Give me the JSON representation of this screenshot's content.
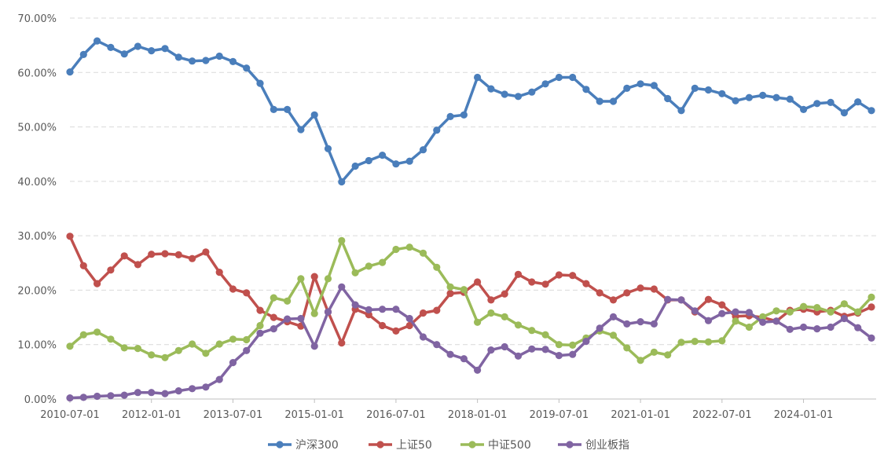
{
  "chart_data": {
    "type": "line",
    "title": "",
    "xlabel": "",
    "ylabel": "",
    "ylim": [
      0,
      0.7
    ],
    "y_ticks": [
      "0.00%",
      "10.00%",
      "20.00%",
      "30.00%",
      "40.00%",
      "50.00%",
      "60.00%",
      "70.00%"
    ],
    "x_tick_labels": [
      "2010-07-01",
      "2012-01-01",
      "2013-07-01",
      "2015-01-01",
      "2016-07-01",
      "2018-01-01",
      "2019-07-01",
      "2021-01-01",
      "2022-07-01",
      "2024-01-01"
    ],
    "grid": "horizontal dashed",
    "legend_position": "bottom",
    "x": [
      "2010-07-01",
      "2010-10-01",
      "2011-01-01",
      "2011-04-01",
      "2011-07-01",
      "2011-10-01",
      "2012-01-01",
      "2012-04-01",
      "2012-07-01",
      "2012-10-01",
      "2013-01-01",
      "2013-04-01",
      "2013-07-01",
      "2013-10-01",
      "2014-01-01",
      "2014-04-01",
      "2014-07-01",
      "2014-10-01",
      "2015-01-01",
      "2015-04-01",
      "2015-07-01",
      "2015-10-01",
      "2016-01-01",
      "2016-04-01",
      "2016-07-01",
      "2016-10-01",
      "2017-01-01",
      "2017-04-01",
      "2017-07-01",
      "2017-10-01",
      "2018-01-01",
      "2018-04-01",
      "2018-07-01",
      "2018-10-01",
      "2019-01-01",
      "2019-04-01",
      "2019-07-01",
      "2019-10-01",
      "2020-01-01",
      "2020-04-01",
      "2020-07-01",
      "2020-10-01",
      "2021-01-01",
      "2021-04-01",
      "2021-07-01",
      "2021-10-01",
      "2022-01-01",
      "2022-04-01",
      "2022-07-01",
      "2022-10-01",
      "2023-01-01",
      "2023-04-01",
      "2023-07-01",
      "2023-10-01",
      "2024-01-01",
      "2024-04-01",
      "2024-07-01",
      "2024-10-01",
      "2025-01-01",
      "2025-04-01"
    ],
    "series": [
      {
        "name": "沪深300",
        "color": "#4a7ebb",
        "values": [
          0.601,
          0.633,
          0.658,
          0.646,
          0.634,
          0.648,
          0.64,
          0.644,
          0.628,
          0.621,
          0.622,
          0.63,
          0.62,
          0.608,
          0.58,
          0.532,
          0.532,
          0.495,
          0.522,
          0.46,
          0.399,
          0.428,
          0.438,
          0.448,
          0.432,
          0.437,
          0.458,
          0.494,
          0.519,
          0.522,
          0.591,
          0.57,
          0.56,
          0.556,
          0.564,
          0.579,
          0.591,
          0.591,
          0.569,
          0.547,
          0.547,
          0.571,
          0.579,
          0.576,
          0.552,
          0.53,
          0.571,
          0.568,
          0.561,
          0.548,
          0.554,
          0.558,
          0.554,
          0.551,
          0.532,
          0.543,
          0.545,
          0.526,
          0.546,
          0.53
        ]
      },
      {
        "name": "上证50",
        "color": "#c0504d",
        "values": [
          0.299,
          0.245,
          0.212,
          0.237,
          0.263,
          0.247,
          0.266,
          0.267,
          0.265,
          0.258,
          0.27,
          0.233,
          0.202,
          0.195,
          0.163,
          0.15,
          0.142,
          0.134,
          0.225,
          0.16,
          0.103,
          0.165,
          0.155,
          0.135,
          0.125,
          0.135,
          0.158,
          0.163,
          0.194,
          0.196,
          0.215,
          0.182,
          0.193,
          0.229,
          0.215,
          0.211,
          0.228,
          0.227,
          0.212,
          0.195,
          0.182,
          0.195,
          0.204,
          0.202,
          0.182,
          0.182,
          0.16,
          0.183,
          0.173,
          0.152,
          0.153,
          0.15,
          0.143,
          0.163,
          0.165,
          0.16,
          0.163,
          0.152,
          0.158,
          0.169
        ]
      },
      {
        "name": "中证500",
        "color": "#9bbb59",
        "values": [
          0.097,
          0.118,
          0.123,
          0.11,
          0.094,
          0.093,
          0.081,
          0.076,
          0.089,
          0.101,
          0.084,
          0.101,
          0.11,
          0.109,
          0.135,
          0.186,
          0.18,
          0.221,
          0.157,
          0.221,
          0.291,
          0.232,
          0.244,
          0.251,
          0.275,
          0.279,
          0.268,
          0.242,
          0.206,
          0.201,
          0.141,
          0.158,
          0.151,
          0.136,
          0.126,
          0.118,
          0.1,
          0.099,
          0.112,
          0.125,
          0.117,
          0.094,
          0.071,
          0.086,
          0.081,
          0.104,
          0.106,
          0.105,
          0.107,
          0.143,
          0.132,
          0.151,
          0.162,
          0.16,
          0.17,
          0.168,
          0.16,
          0.175,
          0.16,
          0.187
        ]
      },
      {
        "name": "创业板指",
        "color": "#8064a2",
        "values": [
          0.002,
          0.003,
          0.005,
          0.006,
          0.007,
          0.012,
          0.012,
          0.01,
          0.015,
          0.019,
          0.022,
          0.036,
          0.067,
          0.089,
          0.121,
          0.129,
          0.147,
          0.148,
          0.097,
          0.16,
          0.206,
          0.173,
          0.164,
          0.165,
          0.165,
          0.148,
          0.114,
          0.1,
          0.082,
          0.074,
          0.053,
          0.09,
          0.096,
          0.079,
          0.092,
          0.091,
          0.08,
          0.082,
          0.106,
          0.13,
          0.151,
          0.138,
          0.142,
          0.138,
          0.183,
          0.182,
          0.162,
          0.144,
          0.157,
          0.16,
          0.159,
          0.141,
          0.143,
          0.128,
          0.132,
          0.129,
          0.132,
          0.148,
          0.131,
          0.112
        ]
      }
    ]
  }
}
